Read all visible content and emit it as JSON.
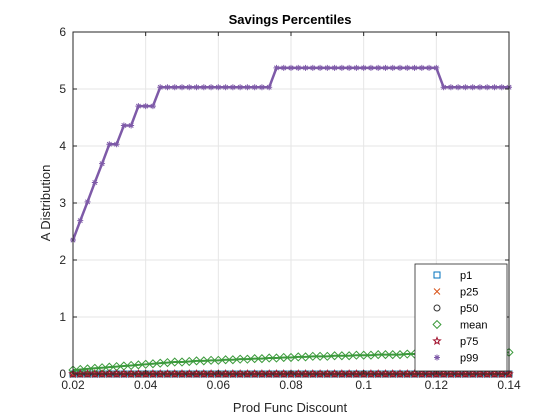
{
  "chart_data": {
    "type": "line",
    "title": "Savings Percentiles",
    "xlabel": "Prod Func Discount",
    "ylabel": "A Distribution",
    "xlim": [
      0.02,
      0.14
    ],
    "ylim": [
      0,
      6
    ],
    "xticks": [
      0.02,
      0.04,
      0.06,
      0.08,
      0.1,
      0.12,
      0.14
    ],
    "xtick_labels": [
      "0.02",
      "0.04",
      "0.06",
      "0.08",
      "0.1",
      "0.12",
      "0.14"
    ],
    "yticks": [
      0,
      1,
      2,
      3,
      4,
      5,
      6
    ],
    "ytick_labels": [
      "0",
      "1",
      "2",
      "3",
      "4",
      "5",
      "6"
    ],
    "grid": true,
    "legend_position": "bottom-right",
    "x": [
      0.02,
      0.022,
      0.024,
      0.026,
      0.028,
      0.03,
      0.032,
      0.034,
      0.036,
      0.038,
      0.04,
      0.042,
      0.044,
      0.046,
      0.048,
      0.05,
      0.052,
      0.054,
      0.056,
      0.058,
      0.06,
      0.062,
      0.064,
      0.066,
      0.068,
      0.07,
      0.072,
      0.074,
      0.076,
      0.078,
      0.08,
      0.082,
      0.084,
      0.086,
      0.088,
      0.09,
      0.092,
      0.094,
      0.096,
      0.098,
      0.1,
      0.102,
      0.104,
      0.106,
      0.108,
      0.11,
      0.112,
      0.114,
      0.116,
      0.118,
      0.12,
      0.122,
      0.124,
      0.126,
      0.128,
      0.13,
      0.132,
      0.134,
      0.136,
      0.138,
      0.14
    ],
    "series": [
      {
        "name": "p1",
        "color": "#0072BD",
        "marker": "square",
        "values": [
          0,
          0,
          0,
          0,
          0,
          0,
          0,
          0,
          0,
          0,
          0,
          0,
          0,
          0,
          0,
          0,
          0,
          0,
          0,
          0,
          0,
          0,
          0,
          0,
          0,
          0,
          0,
          0,
          0,
          0,
          0,
          0,
          0,
          0,
          0,
          0,
          0,
          0,
          0,
          0,
          0,
          0,
          0,
          0,
          0,
          0,
          0,
          0,
          0,
          0,
          0,
          0,
          0,
          0,
          0,
          0,
          0,
          0,
          0,
          0,
          0
        ]
      },
      {
        "name": "p25",
        "color": "#D95319",
        "marker": "x",
        "values": [
          0,
          0,
          0,
          0,
          0,
          0,
          0,
          0,
          0,
          0,
          0,
          0,
          0,
          0,
          0,
          0,
          0,
          0,
          0,
          0,
          0,
          0,
          0,
          0,
          0,
          0,
          0,
          0,
          0,
          0,
          0,
          0,
          0,
          0,
          0,
          0,
          0,
          0,
          0,
          0,
          0,
          0,
          0,
          0,
          0,
          0,
          0,
          0,
          0,
          0,
          0,
          0,
          0,
          0,
          0,
          0,
          0,
          0,
          0,
          0,
          0
        ]
      },
      {
        "name": "p50",
        "color": "#333333",
        "marker": "circle",
        "values": [
          0,
          0,
          0,
          0,
          0,
          0,
          0,
          0,
          0,
          0,
          0,
          0,
          0,
          0,
          0,
          0,
          0,
          0,
          0,
          0,
          0,
          0,
          0,
          0,
          0,
          0,
          0,
          0,
          0,
          0,
          0,
          0,
          0,
          0,
          0,
          0,
          0,
          0,
          0,
          0,
          0,
          0,
          0,
          0,
          0,
          0,
          0,
          0,
          0,
          0,
          0,
          0,
          0,
          0,
          0,
          0,
          0,
          0,
          0,
          0,
          0
        ]
      },
      {
        "name": "mean",
        "color": "#3C9A3C",
        "marker": "diamond",
        "values": [
          0.07,
          0.08,
          0.09,
          0.1,
          0.11,
          0.12,
          0.13,
          0.14,
          0.15,
          0.16,
          0.17,
          0.18,
          0.19,
          0.2,
          0.21,
          0.21,
          0.22,
          0.23,
          0.23,
          0.24,
          0.24,
          0.25,
          0.25,
          0.26,
          0.26,
          0.27,
          0.27,
          0.28,
          0.28,
          0.29,
          0.29,
          0.3,
          0.3,
          0.31,
          0.31,
          0.31,
          0.32,
          0.32,
          0.32,
          0.33,
          0.33,
          0.33,
          0.34,
          0.34,
          0.34,
          0.34,
          0.35,
          0.35,
          0.35,
          0.35,
          0.36,
          0.36,
          0.36,
          0.36,
          0.36,
          0.37,
          0.37,
          0.37,
          0.37,
          0.37,
          0.38
        ]
      },
      {
        "name": "p75",
        "color": "#A2142F",
        "marker": "star",
        "values": [
          0,
          0,
          0,
          0,
          0,
          0,
          0,
          0,
          0,
          0,
          0,
          0,
          0,
          0,
          0,
          0,
          0,
          0,
          0,
          0,
          0,
          0,
          0,
          0,
          0,
          0,
          0,
          0,
          0,
          0,
          0,
          0,
          0,
          0,
          0,
          0,
          0,
          0,
          0,
          0,
          0,
          0,
          0,
          0,
          0,
          0,
          0,
          0,
          0,
          0,
          0,
          0,
          0,
          0,
          0,
          0,
          0,
          0,
          0,
          0,
          0
        ]
      },
      {
        "name": "p99",
        "color": "#7E5AA8",
        "marker": "asterisk",
        "values": [
          2.35,
          2.69,
          3.02,
          3.36,
          3.69,
          4.03,
          4.03,
          4.36,
          4.36,
          4.7,
          4.7,
          4.7,
          5.03,
          5.03,
          5.03,
          5.03,
          5.03,
          5.03,
          5.03,
          5.03,
          5.03,
          5.03,
          5.03,
          5.03,
          5.03,
          5.03,
          5.03,
          5.03,
          5.37,
          5.37,
          5.37,
          5.37,
          5.37,
          5.37,
          5.37,
          5.37,
          5.37,
          5.37,
          5.37,
          5.37,
          5.37,
          5.37,
          5.37,
          5.37,
          5.37,
          5.37,
          5.37,
          5.37,
          5.37,
          5.37,
          5.37,
          5.03,
          5.03,
          5.03,
          5.03,
          5.03,
          5.03,
          5.03,
          5.03,
          5.03,
          5.03
        ]
      }
    ]
  }
}
